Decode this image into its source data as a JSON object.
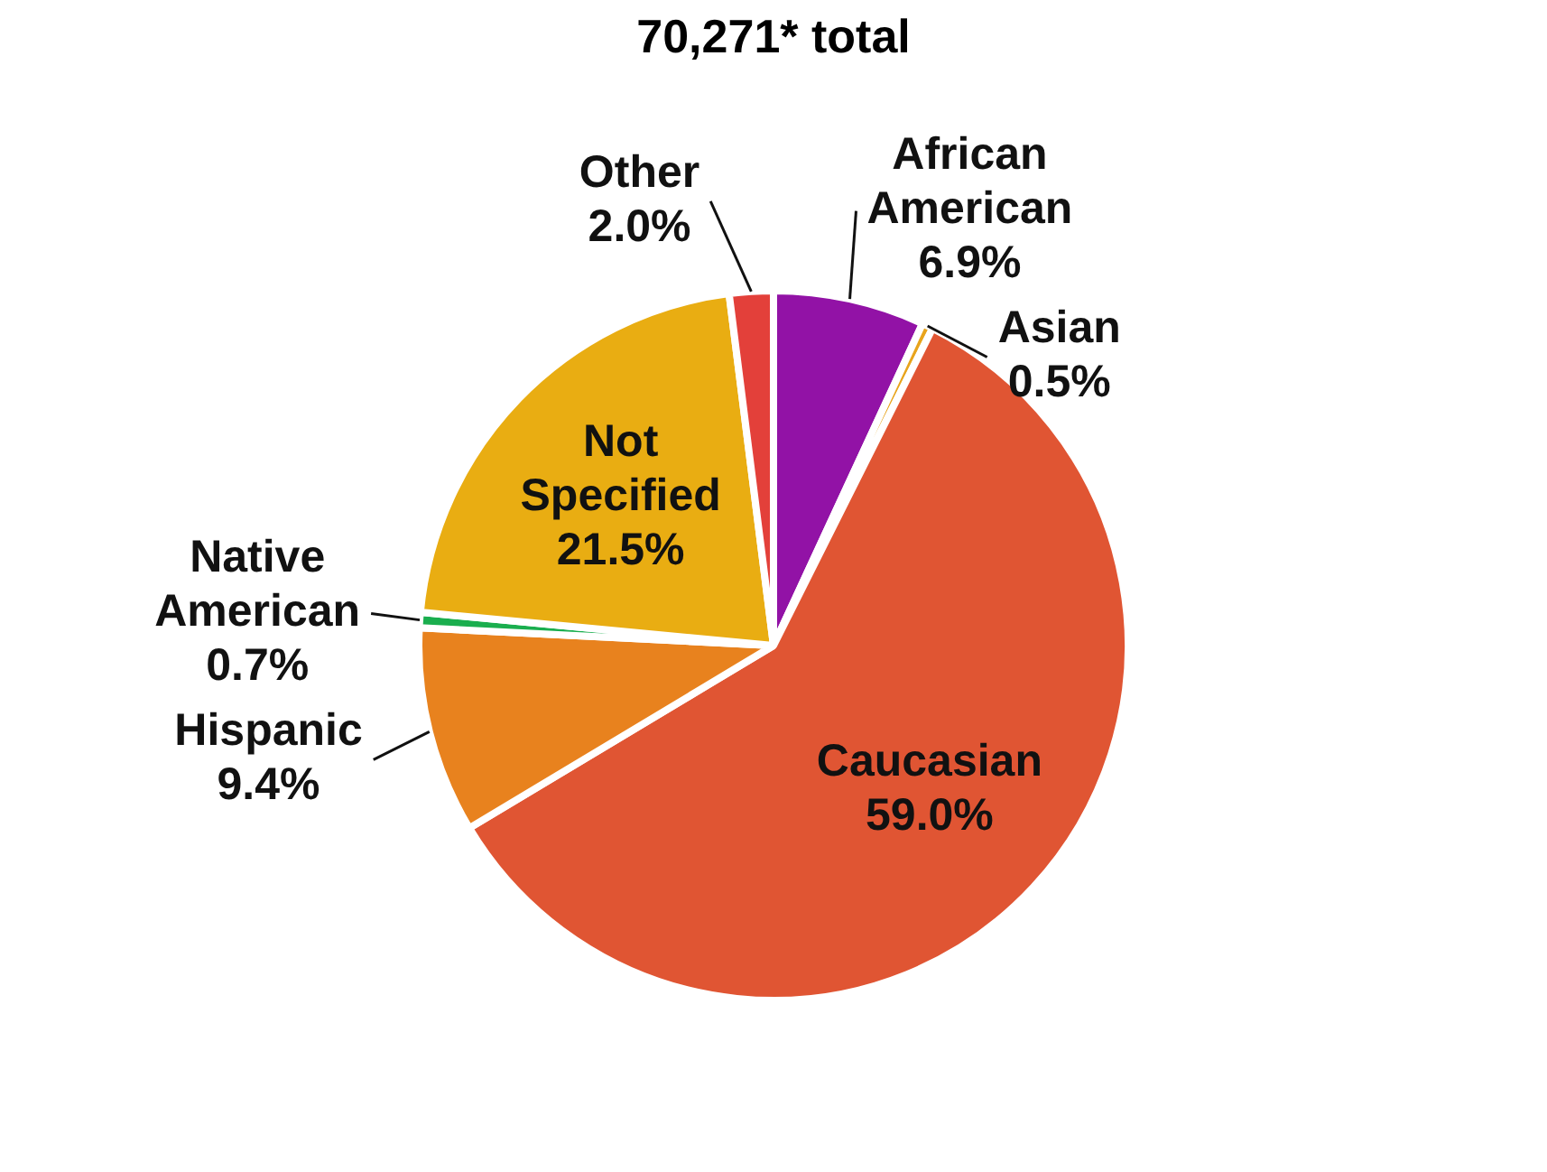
{
  "chart_data": {
    "type": "pie",
    "title": "70,271* total",
    "categories": [
      "African American",
      "Asian",
      "Caucasian",
      "Hispanic",
      "Native American",
      "Not Specified",
      "Other"
    ],
    "values": [
      6.9,
      0.5,
      59.0,
      9.4,
      0.7,
      21.5,
      2.0
    ],
    "value_labels": [
      "6.9%",
      "0.5%",
      "59.0%",
      "9.4%",
      "0.7%",
      "21.5%",
      "2.0%"
    ],
    "colors": [
      "#9212a6",
      "#e8a41c",
      "#e05533",
      "#e8821e",
      "#1aae4e",
      "#e9ad12",
      "#e3403a"
    ],
    "legend": false
  }
}
